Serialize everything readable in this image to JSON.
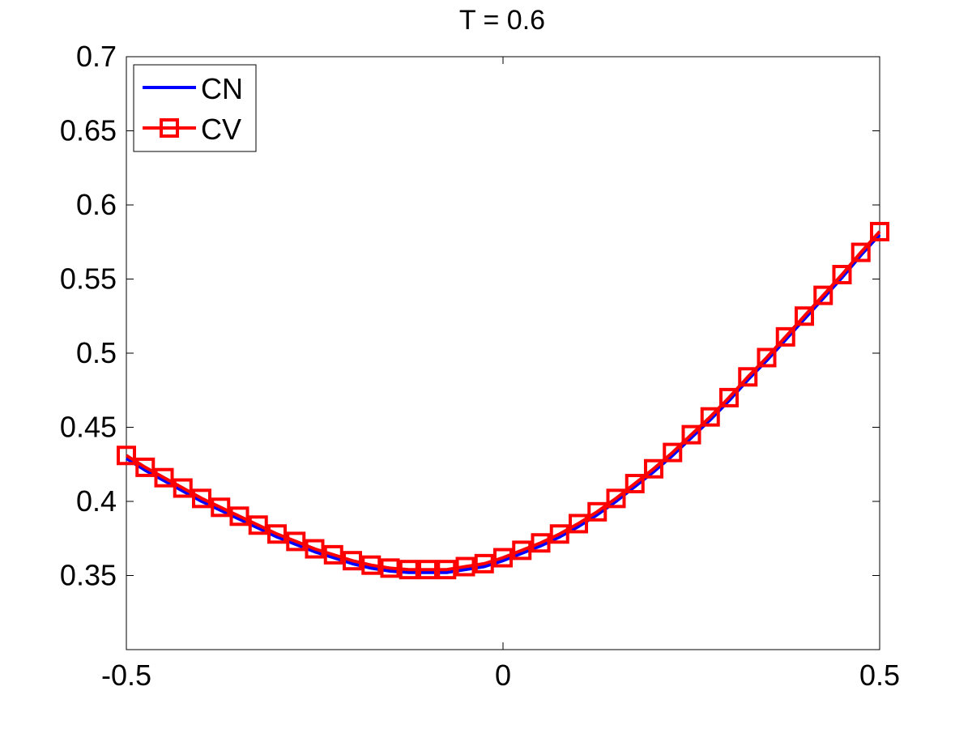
{
  "chart_data": {
    "type": "line",
    "title": "T = 0.6",
    "xlabel": "",
    "ylabel": "",
    "xlim": [
      -0.5,
      0.5
    ],
    "ylim": [
      0.3,
      0.7
    ],
    "xticks": [
      -0.5,
      0,
      0.5
    ],
    "xtick_labels": [
      "-0.5",
      "0",
      "0.5"
    ],
    "yticks": [
      0.35,
      0.4,
      0.45,
      0.5,
      0.55,
      0.6,
      0.65,
      0.7
    ],
    "ytick_labels": [
      "0.35",
      "0.4",
      "0.45",
      "0.5",
      "0.55",
      "0.6",
      "0.65",
      "0.7"
    ],
    "grid": false,
    "legend_position": "top-left",
    "x": [
      -0.5,
      -0.475,
      -0.45,
      -0.425,
      -0.4,
      -0.375,
      -0.35,
      -0.325,
      -0.3,
      -0.275,
      -0.25,
      -0.225,
      -0.2,
      -0.175,
      -0.15,
      -0.125,
      -0.1,
      -0.075,
      -0.05,
      -0.025,
      0,
      0.025,
      0.05,
      0.075,
      0.1,
      0.125,
      0.15,
      0.175,
      0.2,
      0.225,
      0.25,
      0.275,
      0.3,
      0.325,
      0.35,
      0.375,
      0.4,
      0.425,
      0.45,
      0.475,
      0.5
    ],
    "series": [
      {
        "name": "CN",
        "color": "#0000ff",
        "marker": "none",
        "values": [
          0.429,
          0.421,
          0.414,
          0.407,
          0.4,
          0.394,
          0.388,
          0.382,
          0.376,
          0.371,
          0.366,
          0.362,
          0.358,
          0.355,
          0.353,
          0.352,
          0.352,
          0.352,
          0.354,
          0.356,
          0.36,
          0.365,
          0.37,
          0.376,
          0.383,
          0.391,
          0.4,
          0.41,
          0.42,
          0.431,
          0.443,
          0.455,
          0.468,
          0.482,
          0.495,
          0.509,
          0.523,
          0.537,
          0.551,
          0.566,
          0.58
        ]
      },
      {
        "name": "CV",
        "color": "#ff0000",
        "marker": "square",
        "values": [
          0.431,
          0.423,
          0.416,
          0.409,
          0.402,
          0.396,
          0.39,
          0.384,
          0.378,
          0.373,
          0.368,
          0.364,
          0.36,
          0.357,
          0.355,
          0.354,
          0.354,
          0.354,
          0.356,
          0.358,
          0.362,
          0.367,
          0.372,
          0.378,
          0.385,
          0.393,
          0.402,
          0.412,
          0.422,
          0.433,
          0.445,
          0.457,
          0.47,
          0.484,
          0.497,
          0.511,
          0.525,
          0.539,
          0.553,
          0.568,
          0.582
        ]
      }
    ]
  }
}
